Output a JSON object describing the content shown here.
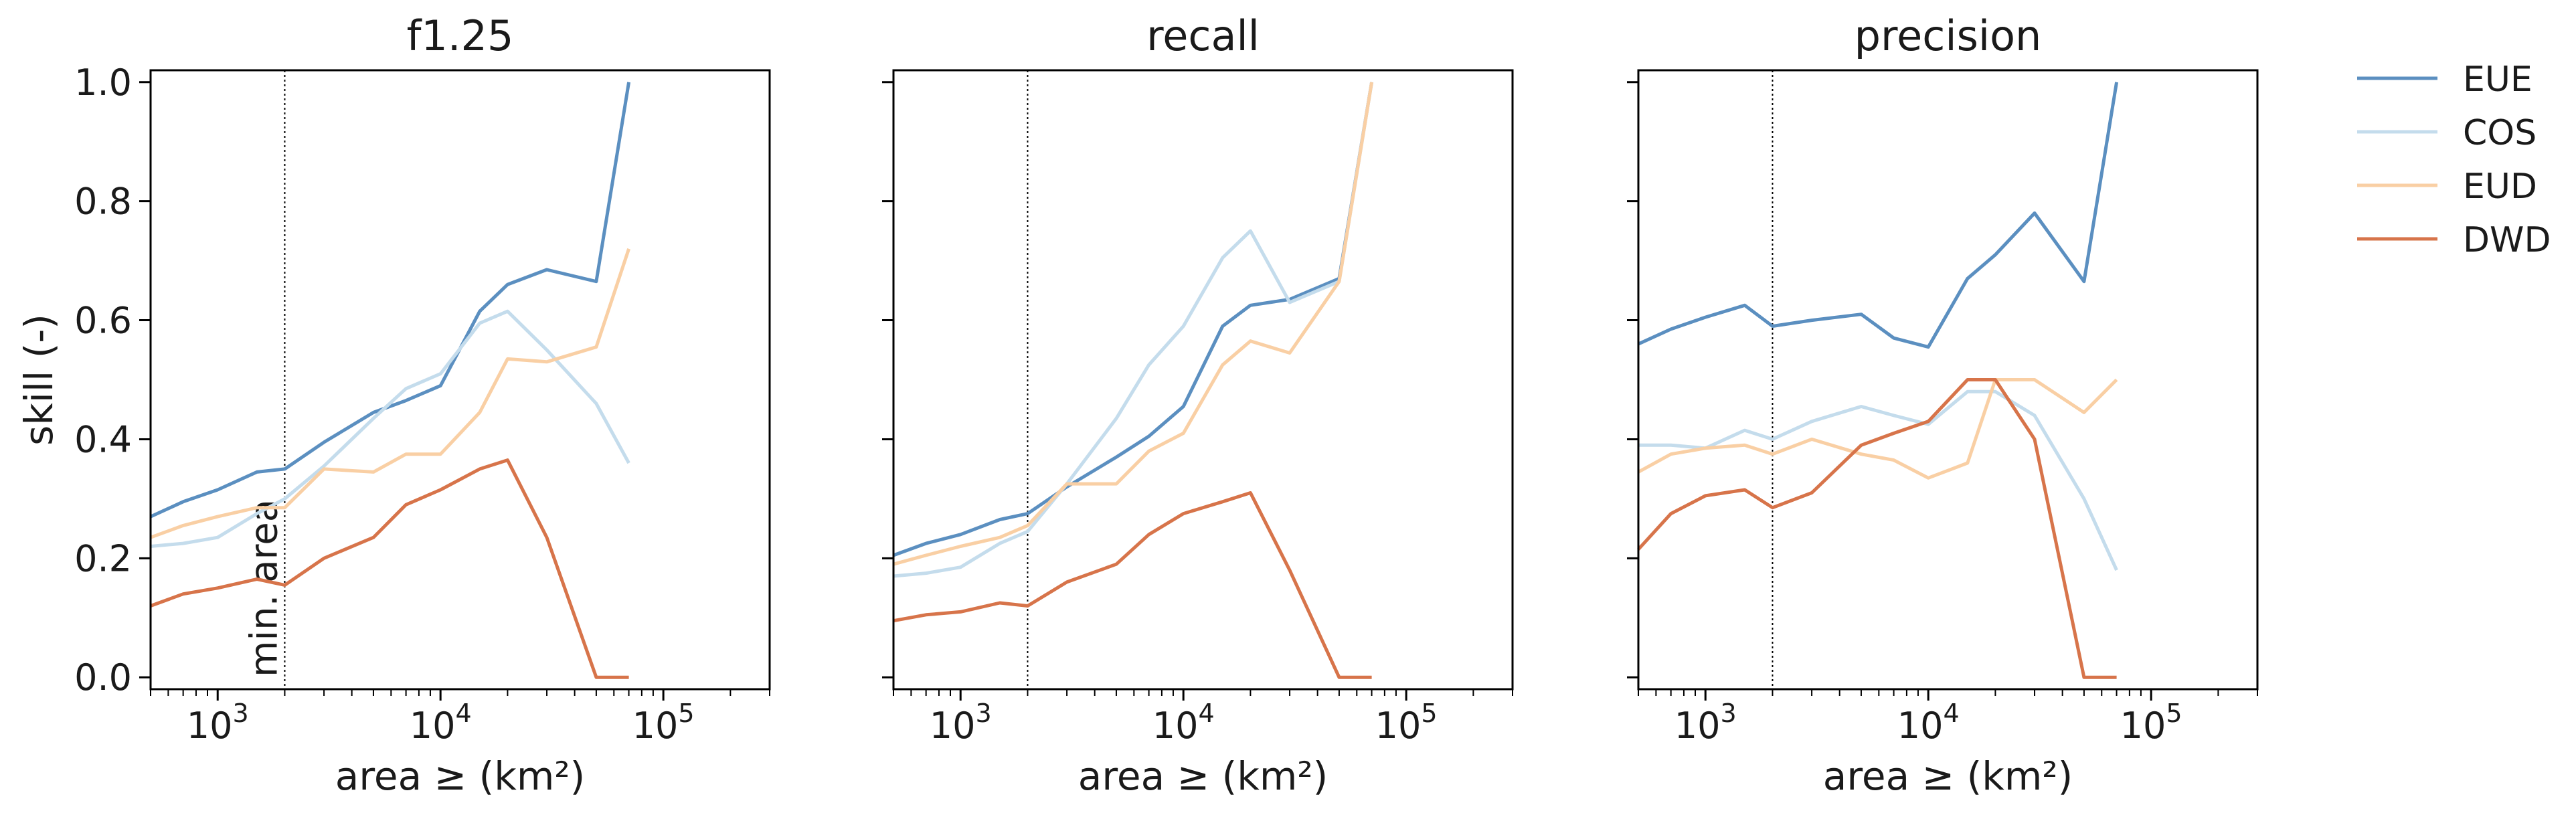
{
  "chart_data": [
    {
      "type": "line",
      "title": "f1.25",
      "xlabel": "area ≥ (km²)",
      "ylabel": "skill (-)",
      "xscale": "log",
      "xlim": [
        500,
        300000
      ],
      "ylim": [
        -0.02,
        1.02
      ],
      "x_ticks": [
        {
          "value": 1000,
          "base": "10",
          "exp": "3"
        },
        {
          "value": 10000,
          "base": "10",
          "exp": "4"
        },
        {
          "value": 100000,
          "base": "10",
          "exp": "5"
        }
      ],
      "y_ticks": [
        "0.0",
        "0.2",
        "0.4",
        "0.6",
        "0.8",
        "1.0"
      ],
      "grid": false,
      "reference_line": {
        "x": 2000,
        "label": "min. area"
      },
      "x": [
        500,
        700,
        1000,
        1500,
        2000,
        3000,
        5000,
        7000,
        10000,
        15000,
        20000,
        30000,
        50000,
        70000
      ],
      "series": [
        {
          "name": "EUE",
          "color": "#5b8fc0",
          "values": [
            0.27,
            0.295,
            0.315,
            0.345,
            0.35,
            0.395,
            0.445,
            0.465,
            0.49,
            0.615,
            0.66,
            0.685,
            0.665,
            1.0
          ]
        },
        {
          "name": "COS",
          "color": "#c4dcec",
          "values": [
            0.22,
            0.225,
            0.235,
            0.275,
            0.3,
            0.355,
            0.435,
            0.485,
            0.51,
            0.595,
            0.615,
            0.55,
            0.46,
            0.36
          ]
        },
        {
          "name": "EUD",
          "color": "#f9cfa4",
          "values": [
            0.235,
            0.255,
            0.27,
            0.285,
            0.285,
            0.35,
            0.345,
            0.375,
            0.375,
            0.445,
            0.535,
            0.53,
            0.555,
            0.72
          ]
        },
        {
          "name": "DWD",
          "color": "#d7744a",
          "values": [
            0.12,
            0.14,
            0.15,
            0.165,
            0.155,
            0.2,
            0.235,
            0.29,
            0.315,
            0.35,
            0.365,
            0.235,
            0.0,
            0.0
          ]
        }
      ]
    },
    {
      "type": "line",
      "title": "recall",
      "xlabel": "area ≥ (km²)",
      "ylabel": "",
      "xscale": "log",
      "xlim": [
        500,
        300000
      ],
      "ylim": [
        -0.02,
        1.02
      ],
      "x_ticks": [
        {
          "value": 1000,
          "base": "10",
          "exp": "3"
        },
        {
          "value": 10000,
          "base": "10",
          "exp": "4"
        },
        {
          "value": 100000,
          "base": "10",
          "exp": "5"
        }
      ],
      "y_ticks": [],
      "grid": false,
      "reference_line": {
        "x": 2000,
        "label": ""
      },
      "x": [
        500,
        700,
        1000,
        1500,
        2000,
        3000,
        5000,
        7000,
        10000,
        15000,
        20000,
        30000,
        50000,
        70000
      ],
      "series": [
        {
          "name": "EUE",
          "color": "#5b8fc0",
          "values": [
            0.205,
            0.225,
            0.24,
            0.265,
            0.275,
            0.32,
            0.37,
            0.405,
            0.455,
            0.59,
            0.625,
            0.635,
            0.67,
            1.0
          ]
        },
        {
          "name": "COS",
          "color": "#c4dcec",
          "values": [
            0.17,
            0.175,
            0.185,
            0.225,
            0.245,
            0.325,
            0.435,
            0.525,
            0.59,
            0.705,
            0.75,
            0.63,
            0.665,
            1.0
          ]
        },
        {
          "name": "EUD",
          "color": "#f9cfa4",
          "values": [
            0.19,
            0.205,
            0.22,
            0.235,
            0.255,
            0.325,
            0.325,
            0.38,
            0.41,
            0.525,
            0.565,
            0.545,
            0.665,
            1.0
          ]
        },
        {
          "name": "DWD",
          "color": "#d7744a",
          "values": [
            0.095,
            0.105,
            0.11,
            0.125,
            0.12,
            0.16,
            0.19,
            0.24,
            0.275,
            0.295,
            0.31,
            0.18,
            0.0,
            0.0
          ]
        }
      ]
    },
    {
      "type": "line",
      "title": "precision",
      "xlabel": "area ≥ (km²)",
      "ylabel": "",
      "xscale": "log",
      "xlim": [
        500,
        300000
      ],
      "ylim": [
        -0.02,
        1.02
      ],
      "x_ticks": [
        {
          "value": 1000,
          "base": "10",
          "exp": "3"
        },
        {
          "value": 10000,
          "base": "10",
          "exp": "4"
        },
        {
          "value": 100000,
          "base": "10",
          "exp": "5"
        }
      ],
      "y_ticks": [],
      "grid": false,
      "reference_line": {
        "x": 2000,
        "label": ""
      },
      "x": [
        500,
        700,
        1000,
        1500,
        2000,
        3000,
        5000,
        7000,
        10000,
        15000,
        20000,
        30000,
        50000,
        70000
      ],
      "series": [
        {
          "name": "EUE",
          "color": "#5b8fc0",
          "values": [
            0.56,
            0.585,
            0.605,
            0.625,
            0.59,
            0.6,
            0.61,
            0.57,
            0.555,
            0.67,
            0.71,
            0.78,
            0.665,
            1.0
          ]
        },
        {
          "name": "COS",
          "color": "#c4dcec",
          "values": [
            0.39,
            0.39,
            0.385,
            0.415,
            0.4,
            0.43,
            0.455,
            0.44,
            0.425,
            0.48,
            0.48,
            0.44,
            0.3,
            0.18
          ]
        },
        {
          "name": "EUD",
          "color": "#f9cfa4",
          "values": [
            0.345,
            0.375,
            0.385,
            0.39,
            0.375,
            0.4,
            0.375,
            0.365,
            0.335,
            0.36,
            0.5,
            0.5,
            0.445,
            0.5
          ]
        },
        {
          "name": "DWD",
          "color": "#d7744a",
          "values": [
            0.215,
            0.275,
            0.305,
            0.315,
            0.285,
            0.31,
            0.39,
            0.41,
            0.43,
            0.5,
            0.5,
            0.4,
            0.0,
            0.0
          ]
        }
      ]
    }
  ],
  "legend": {
    "placement": "right",
    "entries": [
      {
        "name": "EUE",
        "color": "#5b8fc0"
      },
      {
        "name": "COS",
        "color": "#c4dcec"
      },
      {
        "name": "EUD",
        "color": "#f9cfa4"
      },
      {
        "name": "DWD",
        "color": "#d7744a"
      }
    ]
  }
}
